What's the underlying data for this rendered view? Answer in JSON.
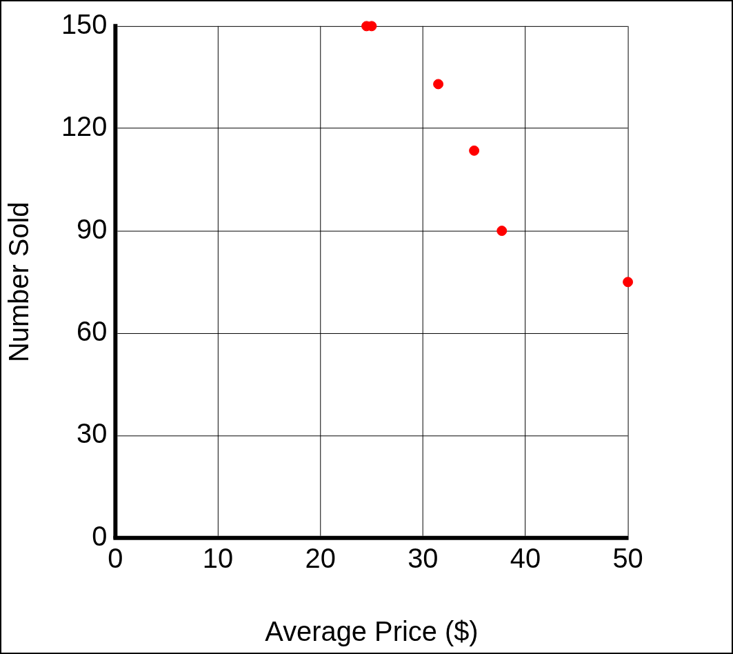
{
  "chart_data": {
    "type": "scatter",
    "xlabel": "Average Price ($)",
    "ylabel": "Number Sold",
    "x": [
      24.5,
      25,
      31.5,
      35,
      37.7,
      50
    ],
    "values": [
      150,
      150,
      133,
      113.5,
      90,
      75
    ],
    "color": "#ff0000",
    "xlim": [
      0,
      50
    ],
    "xticks": [
      0,
      10,
      20,
      30,
      40,
      50
    ],
    "ylim": [
      0,
      150
    ],
    "yticks": [
      0,
      30,
      60,
      90,
      120,
      150
    ],
    "grid": true,
    "legend": false,
    "marker": "circle"
  }
}
